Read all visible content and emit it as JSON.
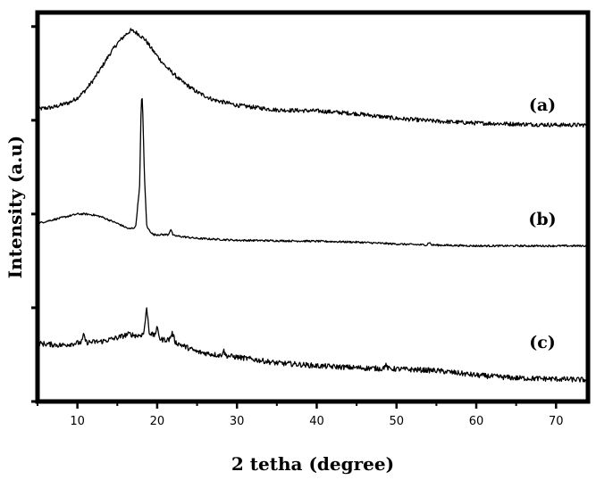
{
  "chart_data": {
    "type": "line",
    "title": "",
    "xlabel": "2 tetha (degree)",
    "ylabel": "Intensity (a.u)",
    "xlim": [
      5,
      74
    ],
    "ylim": [
      0,
      4.15
    ],
    "x_ticks": [
      10,
      20,
      30,
      40,
      50,
      60,
      70
    ],
    "y_ticks": [
      0,
      1,
      2,
      3,
      4
    ],
    "y_tick_labels_shown": false,
    "grid": false,
    "legend": "none",
    "line_color": "#000000",
    "series": [
      {
        "name": "(a)",
        "points": [
          [
            5,
            3.12
          ],
          [
            7,
            3.14
          ],
          [
            9,
            3.19
          ],
          [
            10,
            3.24
          ],
          [
            11,
            3.32
          ],
          [
            12,
            3.43
          ],
          [
            13,
            3.56
          ],
          [
            14,
            3.7
          ],
          [
            15,
            3.82
          ],
          [
            16,
            3.91
          ],
          [
            16.7,
            3.96
          ],
          [
            17.5,
            3.93
          ],
          [
            18.5,
            3.86
          ],
          [
            19.5,
            3.74
          ],
          [
            21,
            3.58
          ],
          [
            23,
            3.42
          ],
          [
            25,
            3.3
          ],
          [
            27,
            3.22
          ],
          [
            30,
            3.16
          ],
          [
            35,
            3.11
          ],
          [
            40,
            3.1
          ],
          [
            45,
            3.07
          ],
          [
            50,
            3.02
          ],
          [
            55,
            2.99
          ],
          [
            60,
            2.97
          ],
          [
            65,
            2.96
          ],
          [
            70,
            2.95
          ],
          [
            74,
            2.95
          ]
        ]
      },
      {
        "name": "(b)",
        "points": [
          [
            5,
            1.9
          ],
          [
            7,
            1.94
          ],
          [
            9,
            1.98
          ],
          [
            10,
            2.0
          ],
          [
            11,
            2.0
          ],
          [
            12,
            1.99
          ],
          [
            13,
            1.97
          ],
          [
            15,
            1.9
          ],
          [
            16.5,
            1.84
          ],
          [
            17.3,
            1.86
          ],
          [
            17.8,
            2.3
          ],
          [
            18.0,
            3.2
          ],
          [
            18.15,
            3.24
          ],
          [
            18.4,
            2.4
          ],
          [
            18.7,
            1.86
          ],
          [
            19.5,
            1.78
          ],
          [
            21.4,
            1.78
          ],
          [
            21.7,
            1.84
          ],
          [
            22.0,
            1.77
          ],
          [
            25,
            1.74
          ],
          [
            30,
            1.72
          ],
          [
            40,
            1.71
          ],
          [
            45,
            1.7
          ],
          [
            50,
            1.68
          ],
          [
            53.8,
            1.67
          ],
          [
            54.1,
            1.7
          ],
          [
            54.4,
            1.67
          ],
          [
            60,
            1.66
          ],
          [
            70,
            1.66
          ],
          [
            74,
            1.66
          ]
        ]
      },
      {
        "name": "(c)",
        "points": [
          [
            5,
            0.62
          ],
          [
            8,
            0.6
          ],
          [
            10.5,
            0.63
          ],
          [
            10.8,
            0.71
          ],
          [
            11.1,
            0.63
          ],
          [
            13,
            0.64
          ],
          [
            15,
            0.68
          ],
          [
            16.5,
            0.72
          ],
          [
            17.5,
            0.7
          ],
          [
            18.3,
            0.72
          ],
          [
            18.7,
            1.0
          ],
          [
            19.0,
            0.74
          ],
          [
            19.6,
            0.7
          ],
          [
            20.0,
            0.78
          ],
          [
            20.4,
            0.66
          ],
          [
            21.5,
            0.66
          ],
          [
            21.9,
            0.73
          ],
          [
            22.3,
            0.63
          ],
          [
            25,
            0.53
          ],
          [
            28.0,
            0.49
          ],
          [
            28.3,
            0.55
          ],
          [
            28.6,
            0.49
          ],
          [
            32,
            0.45
          ],
          [
            35,
            0.41
          ],
          [
            37,
            0.4
          ],
          [
            40,
            0.38
          ],
          [
            45,
            0.36
          ],
          [
            48.3,
            0.35
          ],
          [
            48.6,
            0.39
          ],
          [
            49,
            0.35
          ],
          [
            55,
            0.33
          ],
          [
            60,
            0.28
          ],
          [
            65,
            0.25
          ],
          [
            70,
            0.24
          ],
          [
            74,
            0.23
          ]
        ]
      }
    ]
  }
}
